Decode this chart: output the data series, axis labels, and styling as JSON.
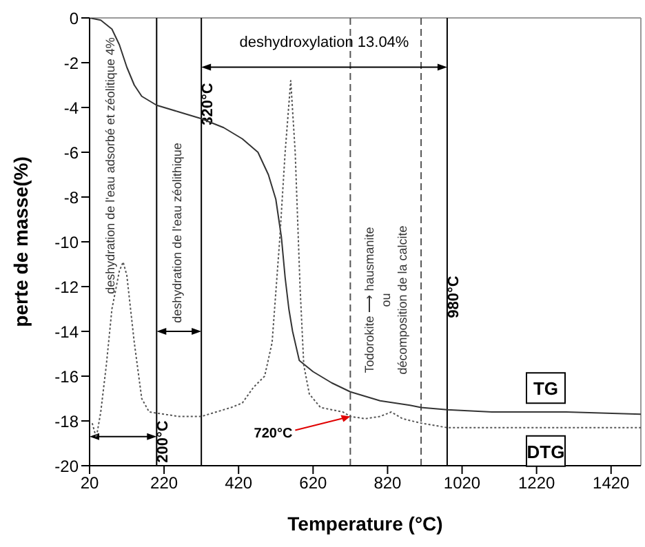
{
  "chart_data": {
    "type": "line",
    "xlabel": "Temperature (°C)",
    "ylabel": "perte de masse(%)",
    "xlim": [
      20,
      1500
    ],
    "xticks": [
      20,
      220,
      420,
      620,
      820,
      1020,
      1220,
      1420
    ],
    "ylim": [
      -20,
      0
    ],
    "yticks": [
      -20,
      -18,
      -16,
      -14,
      -12,
      -10,
      -8,
      -6,
      -4,
      -2,
      0
    ],
    "marker": "none",
    "series": [
      {
        "name": "TG",
        "color": "#333333",
        "line_style": "solid",
        "x": [
          20,
          50,
          80,
          100,
          120,
          140,
          160,
          200,
          260,
          320,
          380,
          430,
          472,
          500,
          520,
          535,
          545,
          555,
          565,
          583,
          620,
          670,
          720,
          800,
          880,
          910,
          980,
          1100,
          1300,
          1500
        ],
        "values": [
          0,
          -0.1,
          -0.5,
          -1.2,
          -2.2,
          -3,
          -3.5,
          -3.9,
          -4.2,
          -4.5,
          -4.9,
          -5.4,
          -6,
          -7,
          -8.1,
          -9.8,
          -11.6,
          -13,
          -14,
          -15.3,
          -15.8,
          -16.3,
          -16.7,
          -17.1,
          -17.3,
          -17.4,
          -17.5,
          -17.6,
          -17.6,
          -17.7
        ]
      },
      {
        "name": "DTG",
        "color": "#555555",
        "line_style": "dotted",
        "x": [
          27,
          38,
          50,
          65,
          80,
          100,
          110,
          120,
          140,
          160,
          180,
          220,
          260,
          320,
          360,
          400,
          430,
          460,
          490,
          510,
          530,
          545,
          560,
          572,
          585,
          595,
          610,
          640,
          700,
          720,
          760,
          800,
          830,
          860,
          910,
          980,
          1100,
          1500
        ],
        "values": [
          -18.1,
          -18.75,
          -17.6,
          -15.5,
          -13,
          -11.3,
          -10.9,
          -11.5,
          -14.5,
          -17,
          -17.6,
          -17.7,
          -17.8,
          -17.8,
          -17.6,
          -17.4,
          -17.2,
          -16.5,
          -16,
          -14.5,
          -10,
          -6,
          -2.8,
          -6,
          -12,
          -15.5,
          -16.8,
          -17.4,
          -17.6,
          -17.8,
          -17.9,
          -17.8,
          -17.6,
          -17.9,
          -18.1,
          -18.3,
          -18.3,
          -18.3
        ]
      }
    ],
    "ref_lines": [
      {
        "axis": "x",
        "value": 200,
        "label": "200°C",
        "line_style": "solid",
        "color": "#000000"
      },
      {
        "axis": "x",
        "value": 320,
        "label": "320°C",
        "line_style": "solid",
        "color": "#000000"
      },
      {
        "axis": "x",
        "value": 980,
        "label": "980°C",
        "line_style": "solid",
        "color": "#000000"
      },
      {
        "axis": "x",
        "value": 720,
        "line_style": "dashed",
        "color": "#555555"
      },
      {
        "axis": "x",
        "value": 910,
        "line_style": "dashed",
        "color": "#555555"
      }
    ],
    "annotations": [
      "deshydration de l'eau adsorbé et zéolitique 4%",
      "deshydration de l'eau zéolithique",
      "deshydroxylation 13.04%",
      "Todorokite ⟶ hausmanite\nou\ndécomposition de la calcite",
      {
        "text": "720°C",
        "x": 720,
        "y": -17.8
      }
    ]
  }
}
